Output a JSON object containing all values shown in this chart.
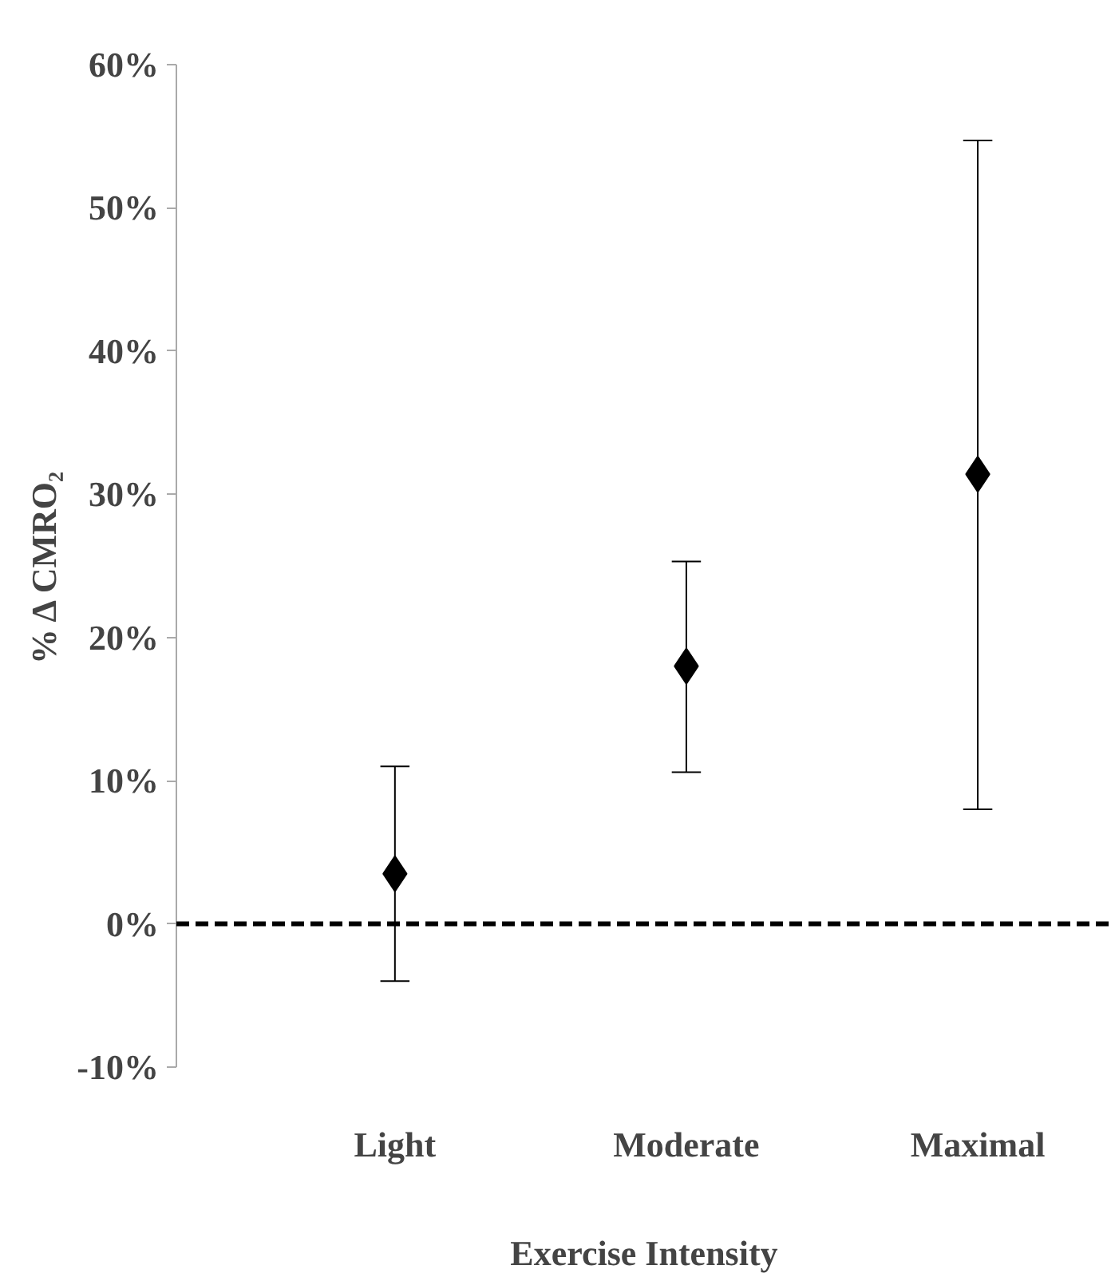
{
  "chart_data": {
    "type": "scatter",
    "xlabel": "Exercise Intensity",
    "ylabel": "% Δ CMRO₂",
    "categories": [
      "Light",
      "Moderate",
      "Maximal"
    ],
    "values": [
      3.5,
      18.0,
      31.4
    ],
    "errors": [
      [
        -4.0,
        11.0
      ],
      [
        10.6,
        25.3
      ],
      [
        8.0,
        54.7
      ]
    ],
    "color": "#000000",
    "marker": "diamond",
    "grid": false,
    "ylim": [
      -10,
      60
    ],
    "yticks": [
      {
        "value": -10,
        "label": "-10%"
      },
      {
        "value": 0,
        "label": "0%"
      },
      {
        "value": 10,
        "label": "10%"
      },
      {
        "value": 20,
        "label": "20%"
      },
      {
        "value": 30,
        "label": "30%"
      },
      {
        "value": 40,
        "label": "40%"
      },
      {
        "value": 50,
        "label": "50%"
      },
      {
        "value": 60,
        "label": "60%"
      }
    ],
    "ref_lines": [
      {
        "axis": "y",
        "value": 0,
        "color": "#000000",
        "line_style": "dashed"
      }
    ]
  }
}
